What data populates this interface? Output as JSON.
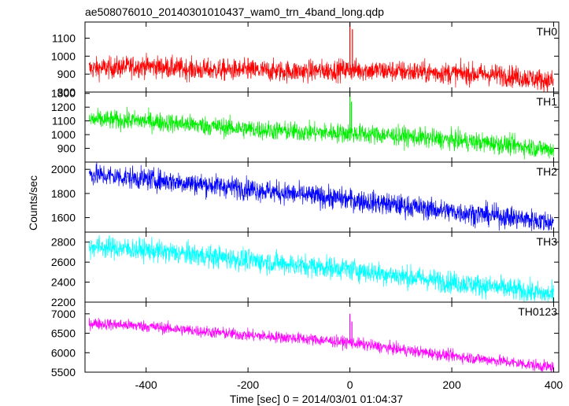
{
  "page": {
    "title": "ae508076010_20140301010437_wam0_trn_4band_long.qdp",
    "ylabel": "Counts/sec",
    "xlabel": "Time [sec] 0 = 2014/03/01 01:04:37"
  },
  "chart_data": {
    "type": "line",
    "title": "ae508076010_20140301010437_wam0_trn_4band_long.qdp",
    "xlabel": "Time [sec] 0 = 2014/03/01 01:04:37",
    "ylabel": "Counts/sec",
    "xlim": [
      -520,
      410
    ],
    "x_ticks": [
      -400,
      -200,
      0,
      200,
      400
    ],
    "x_tick_labels": [
      "-400",
      "-200",
      "0",
      "200",
      "400"
    ],
    "x_range_of_data": [
      -512,
      400
    ],
    "panels": [
      {
        "name": "TH0",
        "color": "#ff0000",
        "ylim": [
          800,
          1190
        ],
        "y_ticks": [
          800,
          900,
          1000,
          1100
        ],
        "y_tick_labels": [
          "800",
          "900",
          "1000",
          "1100"
        ],
        "trend": [
          [
            -512,
            930
          ],
          [
            -400,
            945
          ],
          [
            -300,
            925
          ],
          [
            -200,
            920
          ],
          [
            -100,
            915
          ],
          [
            0,
            925
          ],
          [
            100,
            915
          ],
          [
            200,
            905
          ],
          [
            300,
            895
          ],
          [
            400,
            860
          ]
        ],
        "noise": 30,
        "spikes": [
          {
            "x": 0,
            "y": 1185
          },
          {
            "x": 5,
            "y": 1150
          },
          {
            "x": -200,
            "y": 990
          }
        ]
      },
      {
        "name": "TH1",
        "color": "#00ee00",
        "ylim": [
          800,
          1310
        ],
        "y_ticks": [
          900,
          1000,
          1100,
          1200,
          1300
        ],
        "y_tick_labels": [
          "900",
          "1000",
          "1100",
          "1200",
          "1300"
        ],
        "trend": [
          [
            -512,
            1110
          ],
          [
            -400,
            1100
          ],
          [
            -300,
            1070
          ],
          [
            -200,
            1040
          ],
          [
            -100,
            1020
          ],
          [
            0,
            1010
          ],
          [
            100,
            990
          ],
          [
            200,
            960
          ],
          [
            300,
            930
          ],
          [
            400,
            890
          ]
        ],
        "noise": 35,
        "spikes": [
          {
            "x": 0,
            "y": 1310
          },
          {
            "x": 3,
            "y": 1240
          }
        ]
      },
      {
        "name": "TH2",
        "color": "#0000ff",
        "ylim": [
          1480,
          2060
        ],
        "y_ticks": [
          1600,
          1800,
          2000
        ],
        "y_tick_labels": [
          "1600",
          "1800",
          "2000"
        ],
        "trend": [
          [
            -512,
            1960
          ],
          [
            -400,
            1920
          ],
          [
            -300,
            1880
          ],
          [
            -200,
            1840
          ],
          [
            -100,
            1790
          ],
          [
            0,
            1750
          ],
          [
            100,
            1700
          ],
          [
            200,
            1650
          ],
          [
            300,
            1610
          ],
          [
            400,
            1560
          ]
        ],
        "noise": 45,
        "spikes": []
      },
      {
        "name": "TH3",
        "color": "#00ffff",
        "ylim": [
          2200,
          2900
        ],
        "y_ticks": [
          2200,
          2400,
          2600,
          2800
        ],
        "y_tick_labels": [
          "2200",
          "2400",
          "2600",
          "2800"
        ],
        "trend": [
          [
            -512,
            2760
          ],
          [
            -400,
            2720
          ],
          [
            -300,
            2670
          ],
          [
            -200,
            2620
          ],
          [
            -100,
            2570
          ],
          [
            0,
            2530
          ],
          [
            100,
            2460
          ],
          [
            200,
            2400
          ],
          [
            300,
            2340
          ],
          [
            400,
            2270
          ]
        ],
        "noise": 55,
        "spikes": []
      },
      {
        "name": "TH0123",
        "color": "#ff00ff",
        "ylim": [
          5500,
          7300
        ],
        "y_ticks": [
          5500,
          6000,
          6500,
          7000
        ],
        "y_tick_labels": [
          "5500",
          "6000",
          "6500",
          "7000"
        ],
        "trend": [
          [
            -512,
            6760
          ],
          [
            -400,
            6680
          ],
          [
            -300,
            6560
          ],
          [
            -200,
            6450
          ],
          [
            -100,
            6370
          ],
          [
            0,
            6260
          ],
          [
            100,
            6080
          ],
          [
            200,
            5920
          ],
          [
            300,
            5780
          ],
          [
            400,
            5620
          ]
        ],
        "noise": 75,
        "spikes": [
          {
            "x": 0,
            "y": 7000
          },
          {
            "x": 4,
            "y": 6800
          }
        ]
      }
    ]
  }
}
